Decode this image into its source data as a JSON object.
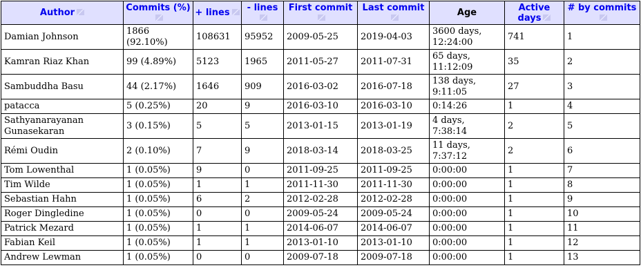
{
  "columns": [
    "Author",
    "Commits (%)",
    "+ lines",
    "- lines",
    "First commit",
    "Last commit",
    "Age",
    "Active days",
    "# by commits"
  ],
  "colors": {
    "header_bg": "#e0e0ff",
    "header_link": "#0000ee"
  },
  "icons": {
    "sort": "sort-toggle-icon"
  },
  "rows": [
    [
      "Damian Johnson",
      "1866 (92.10%)",
      "108631",
      "95952",
      "2009-05-25",
      "2019-04-03",
      "3600 days, 12:24:00",
      "741",
      "1"
    ],
    [
      "Kamran Riaz Khan",
      "99 (4.89%)",
      "5123",
      "1965",
      "2011-05-27",
      "2011-07-31",
      "65 days, 11:12:09",
      "35",
      "2"
    ],
    [
      "Sambuddha Basu",
      "44 (2.17%)",
      "1646",
      "909",
      "2016-03-02",
      "2016-07-18",
      "138 days, 9:11:05",
      "27",
      "3"
    ],
    [
      "patacca",
      "5 (0.25%)",
      "20",
      "9",
      "2016-03-10",
      "2016-03-10",
      "0:14:26",
      "1",
      "4"
    ],
    [
      "Sathyanarayanan Gunasekaran",
      "3 (0.15%)",
      "5",
      "5",
      "2013-01-15",
      "2013-01-19",
      "4 days, 7:38:14",
      "2",
      "5"
    ],
    [
      "Rémi Oudin",
      "2 (0.10%)",
      "7",
      "9",
      "2018-03-14",
      "2018-03-25",
      "11 days, 7:37:12",
      "2",
      "6"
    ],
    [
      "Tom Lowenthal",
      "1 (0.05%)",
      "9",
      "0",
      "2011-09-25",
      "2011-09-25",
      "0:00:00",
      "1",
      "7"
    ],
    [
      "Tim Wilde",
      "1 (0.05%)",
      "1",
      "1",
      "2011-11-30",
      "2011-11-30",
      "0:00:00",
      "1",
      "8"
    ],
    [
      "Sebastian Hahn",
      "1 (0.05%)",
      "6",
      "2",
      "2012-02-28",
      "2012-02-28",
      "0:00:00",
      "1",
      "9"
    ],
    [
      "Roger Dingledine",
      "1 (0.05%)",
      "0",
      "0",
      "2009-05-24",
      "2009-05-24",
      "0:00:00",
      "1",
      "10"
    ],
    [
      "Patrick Mezard",
      "1 (0.05%)",
      "1",
      "1",
      "2014-06-07",
      "2014-06-07",
      "0:00:00",
      "1",
      "11"
    ],
    [
      "Fabian Keil",
      "1 (0.05%)",
      "1",
      "1",
      "2013-01-10",
      "2013-01-10",
      "0:00:00",
      "1",
      "12"
    ],
    [
      "Andrew Lewman",
      "1 (0.05%)",
      "0",
      "0",
      "2009-07-18",
      "2009-07-18",
      "0:00:00",
      "1",
      "13"
    ]
  ]
}
